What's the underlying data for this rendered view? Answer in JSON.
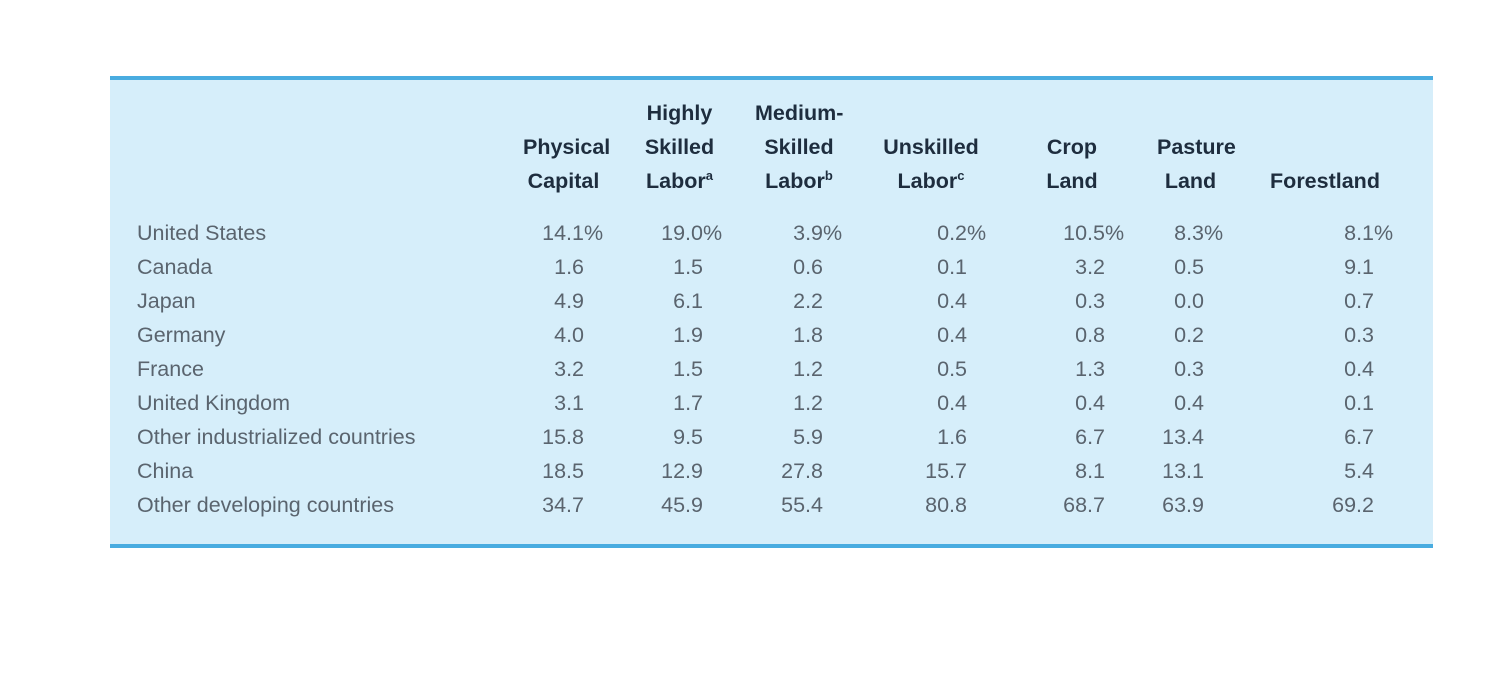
{
  "card": {
    "background_color": "#d6eefa",
    "border_color": "#49ace0",
    "header_text_color": "#1e2d3e",
    "body_text_color": "#5a646e"
  },
  "table": {
    "country_header": "",
    "columns": [
      {
        "id": "physical-capital",
        "lines": [
          "Physical",
          "Capital"
        ],
        "sup": ""
      },
      {
        "id": "highly-skilled-labor",
        "lines": [
          "Highly",
          "Skilled",
          "Labor"
        ],
        "sup": "a"
      },
      {
        "id": "medium-skilled-labor",
        "lines": [
          "Medium-",
          "Skilled",
          "Labor"
        ],
        "sup": "b"
      },
      {
        "id": "unskilled-labor",
        "lines": [
          "Unskilled",
          "Labor"
        ],
        "sup": "c"
      },
      {
        "id": "crop-land",
        "lines": [
          "Crop",
          "Land"
        ],
        "sup": ""
      },
      {
        "id": "pasture-land",
        "lines": [
          "Pasture",
          "Land"
        ],
        "sup": ""
      },
      {
        "id": "forestland",
        "lines": [
          "Forestland"
        ],
        "sup": ""
      }
    ],
    "rows": [
      {
        "country": "United States",
        "suffix": "%",
        "values": [
          "14.1",
          "19.0",
          "3.9",
          "0.2",
          "10.5",
          "8.3",
          "8.1"
        ]
      },
      {
        "country": "Canada",
        "suffix": "",
        "values": [
          "1.6",
          "1.5",
          "0.6",
          "0.1",
          "3.2",
          "0.5",
          "9.1"
        ]
      },
      {
        "country": "Japan",
        "suffix": "",
        "values": [
          "4.9",
          "6.1",
          "2.2",
          "0.4",
          "0.3",
          "0.0",
          "0.7"
        ]
      },
      {
        "country": "Germany",
        "suffix": "",
        "values": [
          "4.0",
          "1.9",
          "1.8",
          "0.4",
          "0.8",
          "0.2",
          "0.3"
        ]
      },
      {
        "country": "France",
        "suffix": "",
        "values": [
          "3.2",
          "1.5",
          "1.2",
          "0.5",
          "1.3",
          "0.3",
          "0.4"
        ]
      },
      {
        "country": "United Kingdom",
        "suffix": "",
        "values": [
          "3.1",
          "1.7",
          "1.2",
          "0.4",
          "0.4",
          "0.4",
          "0.1"
        ]
      },
      {
        "country": "Other industrialized countries",
        "suffix": "",
        "values": [
          "15.8",
          "9.5",
          "5.9",
          "1.6",
          "6.7",
          "13.4",
          "6.7"
        ]
      },
      {
        "country": "China",
        "suffix": "",
        "values": [
          "18.5",
          "12.9",
          "27.8",
          "15.7",
          "8.1",
          "13.1",
          "5.4"
        ]
      },
      {
        "country": "Other developing countries",
        "suffix": "",
        "values": [
          "34.7",
          "45.9",
          "55.4",
          "80.8",
          "68.7",
          "63.9",
          "69.2"
        ]
      }
    ]
  },
  "chart_data": {
    "type": "table",
    "value_format": "percent",
    "columns": [
      "Physical Capital",
      "Highly Skilled Labor (a)",
      "Medium-Skilled Labor (b)",
      "Unskilled Labor (c)",
      "Crop Land",
      "Pasture Land",
      "Forestland"
    ],
    "rows": [
      {
        "label": "United States",
        "values": [
          14.1,
          19.0,
          3.9,
          0.2,
          10.5,
          8.3,
          8.1
        ]
      },
      {
        "label": "Canada",
        "values": [
          1.6,
          1.5,
          0.6,
          0.1,
          3.2,
          0.5,
          9.1
        ]
      },
      {
        "label": "Japan",
        "values": [
          4.9,
          6.1,
          2.2,
          0.4,
          0.3,
          0.0,
          0.7
        ]
      },
      {
        "label": "Germany",
        "values": [
          4.0,
          1.9,
          1.8,
          0.4,
          0.8,
          0.2,
          0.3
        ]
      },
      {
        "label": "France",
        "values": [
          3.2,
          1.5,
          1.2,
          0.5,
          1.3,
          0.3,
          0.4
        ]
      },
      {
        "label": "United Kingdom",
        "values": [
          3.1,
          1.7,
          1.2,
          0.4,
          0.4,
          0.4,
          0.1
        ]
      },
      {
        "label": "Other industrialized countries",
        "values": [
          15.8,
          9.5,
          5.9,
          1.6,
          6.7,
          13.4,
          6.7
        ]
      },
      {
        "label": "China",
        "values": [
          18.5,
          12.9,
          27.8,
          15.7,
          8.1,
          13.1,
          5.4
        ]
      },
      {
        "label": "Other developing countries",
        "values": [
          34.7,
          45.9,
          55.4,
          80.8,
          68.7,
          63.9,
          69.2
        ]
      }
    ]
  }
}
